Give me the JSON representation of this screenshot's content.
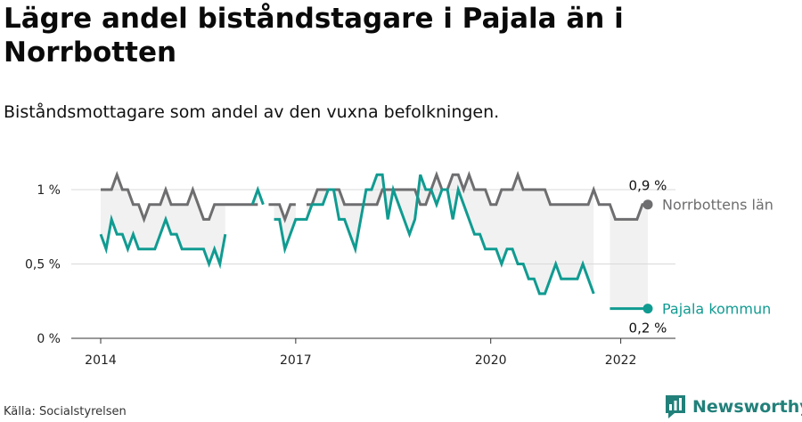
{
  "title": "Lägre andel biståndstagare i Pajala än i Norrbotten",
  "subtitle": "Biståndsmottagare som andel av den vuxna befolkningen.",
  "source": "Källa: Socialstyrelsen",
  "brand": {
    "name": "Newsworthy",
    "icon": "newsworthy-logo-icon"
  },
  "colors": {
    "norrbotten": "#6e6e70",
    "pajala": "#109b91",
    "band": "#f1f1f1",
    "grid": "#d9d9d9"
  },
  "chart_data": {
    "type": "line",
    "x_start": "2014-01",
    "x_end": "2022-03",
    "x_frequency": "monthly",
    "xticks": [
      {
        "label": "2014",
        "value": "2014-01"
      },
      {
        "label": "2017",
        "value": "2017-01"
      },
      {
        "label": "2020",
        "value": "2020-01"
      },
      {
        "label": "2022",
        "value": "2022-01"
      }
    ],
    "yticks": [
      {
        "label": "0 %",
        "value": 0
      },
      {
        "label": "0,5 %",
        "value": 0.5
      },
      {
        "label": "1 %",
        "value": 1.0
      }
    ],
    "ylim": [
      0,
      1.1
    ],
    "shaded_between_series": true,
    "series": [
      {
        "name": "Norrbottens län",
        "key": "norrbotten",
        "end_value_label": "0,9 %",
        "values": [
          1.0,
          1.0,
          1.0,
          1.1,
          1.0,
          1.0,
          0.9,
          0.9,
          0.8,
          0.9,
          0.9,
          0.9,
          1.0,
          0.9,
          0.9,
          0.9,
          0.9,
          1.0,
          0.9,
          0.8,
          0.8,
          0.9,
          0.9,
          0.9,
          0.9,
          0.9,
          0.9,
          0.9,
          0.9,
          0.9,
          null,
          0.9,
          0.9,
          0.9,
          0.8,
          0.9,
          0.9,
          null,
          0.9,
          0.9,
          1.0,
          1.0,
          1.0,
          1.0,
          1.0,
          0.9,
          0.9,
          0.9,
          0.9,
          0.9,
          0.9,
          0.9,
          1.0,
          1.0,
          1.0,
          1.0,
          1.0,
          1.0,
          1.0,
          0.9,
          0.9,
          1.0,
          1.1,
          1.0,
          1.0,
          1.1,
          1.1,
          1.0,
          1.1,
          1.0,
          1.0,
          1.0,
          0.9,
          0.9,
          1.0,
          1.0,
          1.0,
          1.1,
          1.0,
          1.0,
          1.0,
          1.0,
          1.0,
          0.9,
          0.9,
          0.9,
          0.9,
          0.9,
          0.9,
          0.9,
          0.9,
          1.0,
          0.9,
          0.9,
          0.9,
          0.8,
          0.8,
          0.8,
          0.8,
          0.8,
          0.9,
          0.9
        ]
      },
      {
        "name": "Pajala kommun",
        "key": "pajala",
        "end_value_label": "0,2 %",
        "values": [
          0.7,
          0.6,
          0.8,
          0.7,
          0.7,
          0.6,
          0.7,
          0.6,
          0.6,
          0.6,
          0.6,
          0.7,
          0.8,
          0.7,
          0.7,
          0.6,
          0.6,
          0.6,
          0.6,
          0.6,
          0.5,
          0.6,
          0.5,
          0.7,
          null,
          null,
          null,
          null,
          0.9,
          1.0,
          0.9,
          null,
          0.8,
          0.8,
          0.6,
          0.7,
          0.8,
          0.8,
          0.8,
          0.9,
          0.9,
          0.9,
          1.0,
          1.0,
          0.8,
          0.8,
          0.7,
          0.6,
          0.8,
          1.0,
          1.0,
          1.1,
          1.1,
          0.8,
          1.0,
          0.9,
          0.8,
          0.7,
          0.8,
          1.1,
          1.0,
          1.0,
          0.9,
          1.0,
          1.0,
          0.8,
          1.0,
          0.9,
          0.8,
          0.7,
          0.7,
          0.6,
          0.6,
          0.6,
          0.5,
          0.6,
          0.6,
          0.5,
          0.5,
          0.4,
          0.4,
          0.3,
          0.3,
          0.4,
          0.5,
          0.4,
          0.4,
          0.4,
          0.4,
          0.5,
          0.4,
          0.3,
          null,
          null,
          0.2,
          0.2,
          0.2,
          0.2,
          0.2,
          0.2,
          0.2,
          0.2
        ]
      }
    ]
  }
}
